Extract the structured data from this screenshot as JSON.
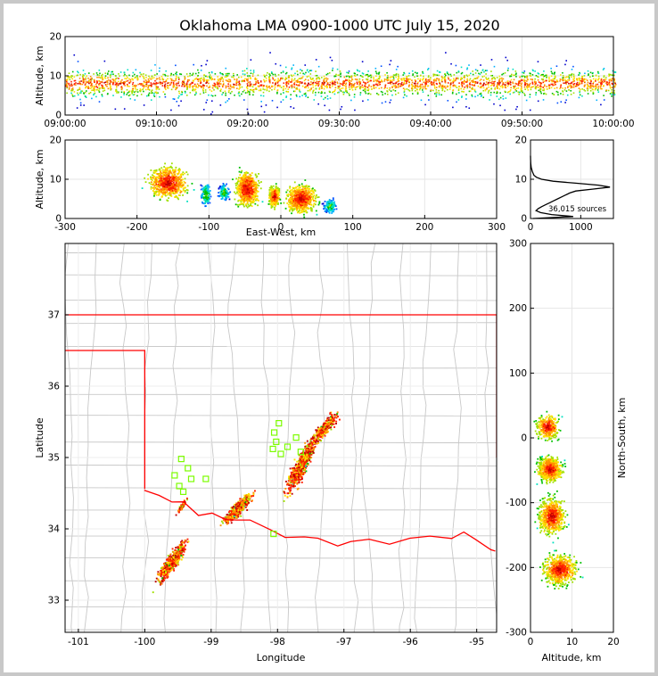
{
  "figure": {
    "title": "Oklahoma LMA 0900-1000 UTC July 15, 2020"
  },
  "chart_data": [
    {
      "id": "time-height",
      "type": "heatmap",
      "xlabel": "",
      "ylabel": "Altitude, km",
      "x_ticks": [
        "09:00:00",
        "09:10:00",
        "09:20:00",
        "09:30:00",
        "09:40:00",
        "09:50:00",
        "10:00:00"
      ],
      "xlim_minutes": [
        0,
        60
      ],
      "ylim": [
        0,
        20
      ],
      "y_ticks": [
        0,
        10,
        20
      ],
      "grid": true,
      "activity_periods_minutes": [
        [
          0,
          60
        ]
      ],
      "altitude_core_km": [
        5,
        11
      ]
    },
    {
      "id": "ew-altitude",
      "type": "heatmap",
      "xlabel": "East-West, km",
      "ylabel": "Altitude, km",
      "xlim": [
        -300,
        300
      ],
      "x_ticks": [
        -300,
        -200,
        -100,
        0,
        100,
        200,
        300
      ],
      "ylim": [
        0,
        20
      ],
      "y_ticks": [
        0,
        10,
        20
      ],
      "grid": true,
      "clusters": [
        {
          "x_range": [
            -195,
            -120
          ],
          "alt": [
            3,
            17
          ],
          "density": "high"
        },
        {
          "x_range": [
            -115,
            -95
          ],
          "alt": [
            2,
            12
          ],
          "density": "low"
        },
        {
          "x_range": [
            -90,
            -70
          ],
          "alt": [
            4,
            11
          ],
          "density": "low"
        },
        {
          "x_range": [
            -70,
            -25
          ],
          "alt": [
            1,
            16
          ],
          "density": "high"
        },
        {
          "x_range": [
            -20,
            0
          ],
          "alt": [
            2,
            11
          ],
          "density": "medium"
        },
        {
          "x_range": [
            0,
            55
          ],
          "alt": [
            0,
            12
          ],
          "density": "high"
        },
        {
          "x_range": [
            55,
            80
          ],
          "alt": [
            1,
            7
          ],
          "density": "low"
        }
      ]
    },
    {
      "id": "altitude-histogram",
      "type": "line",
      "xlabel": "",
      "ylabel": "",
      "xlim": [
        0,
        1650
      ],
      "x_ticks": [
        0,
        1000
      ],
      "ylim": [
        0,
        20
      ],
      "y_ticks": [
        0,
        10,
        20
      ],
      "annotation": "36,015 sources",
      "grid": true,
      "profile": [
        {
          "alt": 0.0,
          "count": 50
        },
        {
          "alt": 0.5,
          "count": 850
        },
        {
          "alt": 1.0,
          "count": 420
        },
        {
          "alt": 1.5,
          "count": 200
        },
        {
          "alt": 2.0,
          "count": 110
        },
        {
          "alt": 2.5,
          "count": 150
        },
        {
          "alt": 3.0,
          "count": 220
        },
        {
          "alt": 3.5,
          "count": 300
        },
        {
          "alt": 4.0,
          "count": 380
        },
        {
          "alt": 4.5,
          "count": 460
        },
        {
          "alt": 5.0,
          "count": 540
        },
        {
          "alt": 5.5,
          "count": 620
        },
        {
          "alt": 6.0,
          "count": 700
        },
        {
          "alt": 6.5,
          "count": 780
        },
        {
          "alt": 7.0,
          "count": 900
        },
        {
          "alt": 7.5,
          "count": 1250
        },
        {
          "alt": 8.0,
          "count": 1580
        },
        {
          "alt": 8.5,
          "count": 1350
        },
        {
          "alt": 9.0,
          "count": 900
        },
        {
          "alt": 9.5,
          "count": 450
        },
        {
          "alt": 10.0,
          "count": 220
        },
        {
          "alt": 10.5,
          "count": 120
        },
        {
          "alt": 11.0,
          "count": 70
        },
        {
          "alt": 12.0,
          "count": 35
        },
        {
          "alt": 13.0,
          "count": 15
        },
        {
          "alt": 14.0,
          "count": 6
        },
        {
          "alt": 15.0,
          "count": 2
        },
        {
          "alt": 16.0,
          "count": 0
        }
      ]
    },
    {
      "id": "plan-view",
      "type": "scatter",
      "xlabel": "Longitude",
      "ylabel": "Latitude",
      "xlim": [
        -101.2,
        -94.7
      ],
      "x_ticks": [
        -101,
        -100,
        -99,
        -98,
        -97,
        -96,
        -95
      ],
      "ylim": [
        32.55,
        38.0
      ],
      "y_ticks": [
        33,
        34,
        35,
        36,
        37
      ],
      "grid": true,
      "border_color": "#ff0000",
      "county_color": "#c8c8c8",
      "station_color": "#7cfc00",
      "stations": [
        {
          "lon": -99.45,
          "lat": 34.98
        },
        {
          "lon": -99.35,
          "lat": 34.85
        },
        {
          "lon": -99.55,
          "lat": 34.75
        },
        {
          "lon": -99.3,
          "lat": 34.7
        },
        {
          "lon": -99.48,
          "lat": 34.6
        },
        {
          "lon": -99.42,
          "lat": 34.52
        },
        {
          "lon": -99.08,
          "lat": 34.7
        },
        {
          "lon": -97.98,
          "lat": 35.48
        },
        {
          "lon": -98.05,
          "lat": 35.35
        },
        {
          "lon": -98.02,
          "lat": 35.22
        },
        {
          "lon": -97.85,
          "lat": 35.15
        },
        {
          "lon": -97.72,
          "lat": 35.28
        },
        {
          "lon": -98.07,
          "lat": 35.12
        },
        {
          "lon": -97.95,
          "lat": 35.05
        },
        {
          "lon": -97.65,
          "lat": 35.08
        },
        {
          "lon": -98.06,
          "lat": 33.93
        }
      ],
      "clusters": [
        {
          "lon": [
            -99.9,
            -99.3
          ],
          "lat": [
            33.15,
            33.95
          ],
          "density": "high"
        },
        {
          "lon": [
            -99.55,
            -99.35
          ],
          "lat": [
            34.2,
            34.45
          ],
          "density": "low"
        },
        {
          "lon": [
            -98.9,
            -98.3
          ],
          "lat": [
            34.0,
            34.6
          ],
          "density": "high"
        },
        {
          "lon": [
            -98.0,
            -97.3
          ],
          "lat": [
            34.3,
            35.5
          ],
          "density": "high"
        },
        {
          "lon": [
            -97.6,
            -97.0
          ],
          "lat": [
            35.1,
            35.75
          ],
          "density": "medium"
        }
      ]
    },
    {
      "id": "ns-altitude",
      "type": "heatmap",
      "xlabel": "Altitude, km",
      "ylabel": "North-South, km",
      "xlim": [
        0,
        20
      ],
      "x_ticks": [
        0,
        10,
        20
      ],
      "ylim": [
        -300,
        300
      ],
      "y_ticks": [
        -300,
        -200,
        -100,
        0,
        100,
        200,
        300
      ],
      "grid": true,
      "clusters": [
        {
          "y_range": [
            -235,
            -170
          ],
          "alt": [
            0,
            17
          ],
          "density": "high"
        },
        {
          "y_range": [
            -160,
            -80
          ],
          "alt": [
            0,
            13
          ],
          "density": "high"
        },
        {
          "y_range": [
            -75,
            -20
          ],
          "alt": [
            0,
            12
          ],
          "density": "high"
        },
        {
          "y_range": [
            -10,
            45
          ],
          "alt": [
            0,
            11
          ],
          "density": "medium"
        }
      ]
    }
  ]
}
